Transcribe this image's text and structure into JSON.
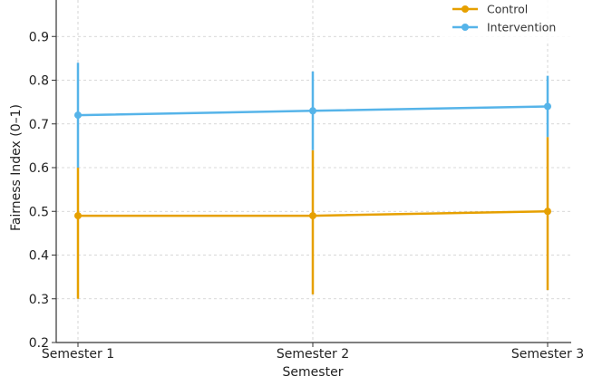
{
  "chart_data": {
    "type": "line",
    "title": "",
    "xlabel": "Semester",
    "ylabel": "Fairness Index (0–1)",
    "categories": [
      "Semester 1",
      "Semester 2",
      "Semester 3"
    ],
    "ylim": [
      0.2,
      1.0
    ],
    "yticks": [
      "0.2",
      "0.3",
      "0.4",
      "0.5",
      "0.6",
      "0.7",
      "0.8",
      "0.9"
    ],
    "grid": true,
    "legend_position": "top-right",
    "series": [
      {
        "name": "Control",
        "color": "#E6A000",
        "values": [
          0.49,
          0.49,
          0.5
        ],
        "err_low": [
          0.3,
          0.31,
          0.32
        ],
        "err_high": [
          0.6,
          0.64,
          0.67
        ]
      },
      {
        "name": "Intervention",
        "color": "#56B4E9",
        "values": [
          0.72,
          0.73,
          0.74
        ],
        "err_low": [
          0.6,
          0.64,
          0.67
        ],
        "err_high": [
          0.84,
          0.82,
          0.81
        ]
      }
    ]
  }
}
